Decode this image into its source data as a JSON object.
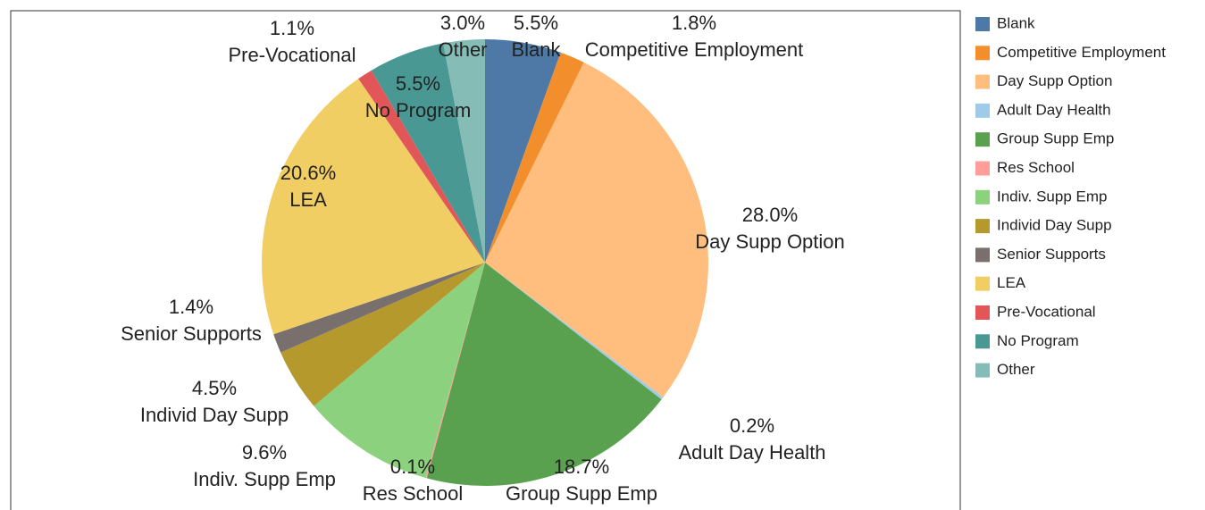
{
  "chart_data": {
    "type": "pie",
    "categories": [
      "Blank",
      "Competitive Employment",
      "Day Supp Option",
      "Adult Day Health",
      "Group Supp Emp",
      "Res School",
      "Indiv. Supp Emp",
      "Individ Day Supp",
      "Senior Supports",
      "LEA",
      "Pre-Vocational",
      "No Program",
      "Other"
    ],
    "values": [
      5.5,
      1.8,
      28.0,
      0.2,
      18.7,
      0.1,
      9.6,
      4.5,
      1.4,
      20.6,
      1.1,
      5.5,
      3.0
    ],
    "value_labels": [
      "5.5%",
      "1.8%",
      "28.0%",
      "0.2%",
      "18.7%",
      "0.1%",
      "9.6%",
      "4.5%",
      "1.4%",
      "20.6%",
      "1.1%",
      "5.5%",
      "3.0%"
    ],
    "colors": [
      "#4e79a7",
      "#f28e2b",
      "#ffbe7d",
      "#a0cbe8",
      "#59a14f",
      "#ff9d9a",
      "#8cd17d",
      "#b6992d",
      "#79706e",
      "#f1ce63",
      "#e15759",
      "#499894",
      "#86bcb6"
    ],
    "legend": "right"
  }
}
